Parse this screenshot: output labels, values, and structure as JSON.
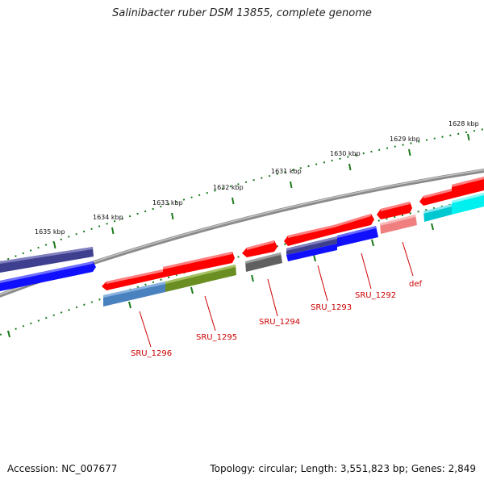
{
  "header": {
    "title": "Salinibacter ruber DSM 13855, complete genome"
  },
  "footer": {
    "accession": "Accession: NC_007677",
    "topology": "Topology: circular; Length: 3,551,823 bp; Genes: 2,849"
  },
  "ruler": {
    "ticks": [
      {
        "label": "1628 kbp",
        "kbp": 1628
      },
      {
        "label": "1629 kbp",
        "kbp": 1629
      },
      {
        "label": "1630 kbp",
        "kbp": 1630
      },
      {
        "label": "1631 kbp",
        "kbp": 1631
      },
      {
        "label": "1632 kbp",
        "kbp": 1632
      },
      {
        "label": "1633 kbp",
        "kbp": 1633
      },
      {
        "label": "1634 kbp",
        "kbp": 1634
      },
      {
        "label": "1635 kbp",
        "kbp": 1635
      }
    ]
  },
  "genes": [
    {
      "label": "SRU_1296"
    },
    {
      "label": "SRU_1295"
    },
    {
      "label": "SRU_1294"
    },
    {
      "label": "SRU_1293"
    },
    {
      "label": "SRU_1292"
    },
    {
      "label": "def"
    }
  ],
  "colors": {
    "cds_forward": "#ff0000",
    "cds_reverse": "#ff0000",
    "backbone": "#808080",
    "tick": "#1a7a1a",
    "gene_label": "#cc0000",
    "cog_blue": "#1010ff",
    "cog_navy": "#3f3f8f",
    "cog_steel": "#4a82c0",
    "cog_olive": "#6b8e23",
    "cog_gray": "#606060",
    "cog_pink": "#f08080",
    "cog_cyan": "#00d8e0"
  }
}
